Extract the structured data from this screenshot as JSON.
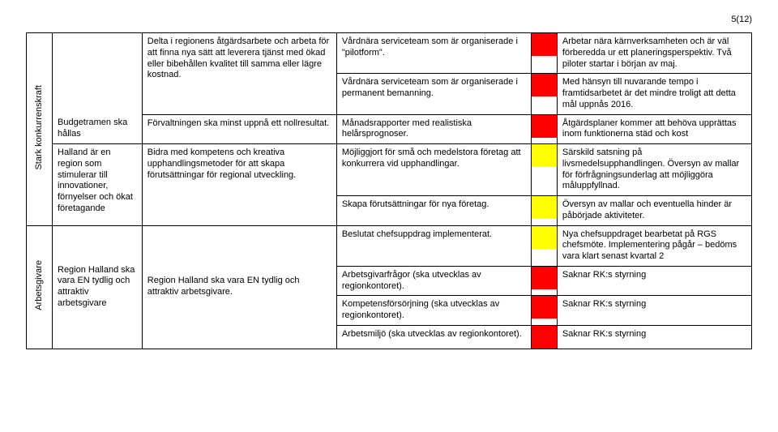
{
  "page_number": "5(12)",
  "colors": {
    "red": "#ff0000",
    "yellow": "#ffff00",
    "text": "#000000",
    "bg": "#ffffff",
    "border": "#000000"
  },
  "rows": [
    {
      "vlabel": "Stark konkurrenskraft",
      "vlabel_span": 5,
      "sub": "",
      "sub_span": 3,
      "desc": "Delta i regionens åtgärdsarbete och arbeta för att finna nya sätt att leverera tjänst med ökad eller bibehållen kvalitet till samma eller lägre kostnad.",
      "desc_span": 2,
      "indicator": "Vårdnära serviceteam som är organiserade i \"pilotform\".",
      "chip": "red",
      "status": "Arbetar nära kärnverksamheten och är väl förberedda ur ett planeringsperspektiv. Två piloter startar i början av maj."
    },
    {
      "indicator": "Vårdnära serviceteam som är organiserade i permanent bemanning.",
      "chip": "red",
      "status": "Med hänsyn till nuvarande tempo i framtidsarbetet är det mindre troligt att detta mål uppnås 2016."
    },
    {
      "sub_cont": "Budgetramen ska hållas",
      "desc": "Förvaltningen ska minst uppnå ett nollresultat.",
      "indicator": "Månadsrapporter med realistiska helårsprognoser.",
      "chip": "red",
      "status": "Åtgärdsplaner kommer att behöva upprättas inom funktionerna städ och kost"
    },
    {
      "sub": "Halland är en region som stimulerar till innovationer, förnyelser och ökat företagande",
      "sub_span": 2,
      "desc": "Bidra med kompetens och kreativa upphandlingsmetoder för att skapa förutsättningar för regional utveckling.",
      "desc_span": 2,
      "indicator": "Möjliggjort för små och medelstora företag att konkurrera vid upphandlingar.",
      "chip": "yellow",
      "status": "Särskild satsning på livsmedelsupphandlingen. Översyn av mallar för förfrågningsunderlag att möjliggöra måluppfyllnad."
    },
    {
      "indicator": "Skapa förutsättningar för nya företag.",
      "chip": "yellow",
      "status": "Översyn av mallar och eventuella hinder är påbörjade aktiviteter."
    },
    {
      "vlabel": "Arbetsgivare",
      "vlabel_span": 5,
      "sub": "Region Halland ska vara EN tydlig och attraktiv arbetsgivare",
      "sub_span": 5,
      "desc": "Region Halland ska vara EN tydlig och attraktiv arbetsgivare.",
      "desc_span": 5,
      "indicator": "Beslutat chefsuppdrag implementerat.",
      "chip": "yellow",
      "status": "Nya chefsuppdraget bearbetat på RGS chefsmöte. Implementering pågår – bedöms vara klart senast kvartal 2"
    },
    {
      "indicator": "Arbetsgivarfrågor (ska utvecklas av regionkontoret).",
      "chip": "red",
      "status": "Saknar RK:s styrning"
    },
    {
      "indicator": "Kompetensförsörjning (ska utvecklas av regionkontoret).",
      "chip": "red",
      "status": "Saknar RK:s styrning"
    },
    {
      "indicator": "Arbetsmiljö (ska utvecklas av regionkontoret).",
      "chip": "red",
      "status": "Saknar RK:s styrning"
    }
  ]
}
